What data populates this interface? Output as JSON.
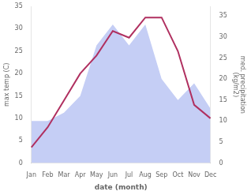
{
  "chart_data": {
    "type": "line",
    "categories": [
      "Jan",
      "Feb",
      "Mar",
      "Apr",
      "May",
      "Jun",
      "Jul",
      "Aug",
      "Sep",
      "Oct",
      "Nov",
      "Dec"
    ],
    "series": [
      {
        "type": "line",
        "color": "#b03060",
        "values": [
          3.5,
          8,
          14,
          20,
          24,
          29.5,
          28,
          32.5,
          32.5,
          25,
          13,
          10
        ]
      },
      {
        "type": "area",
        "color": "#c5cef5",
        "axis": "y2",
        "values": [
          10,
          10,
          12,
          16,
          28,
          33,
          28,
          33,
          20,
          15,
          19,
          13
        ]
      }
    ],
    "xlabel": "date (month)",
    "ylabel": "max temp (C)",
    "y2label": "med. precipitation\n(kg/m2)",
    "ylim": [
      0,
      35
    ],
    "yticks": [
      0,
      5,
      10,
      15,
      20,
      25,
      30,
      35
    ],
    "y2lim": [
      0,
      37.3
    ],
    "y2ticks": [
      0,
      5,
      10,
      15,
      20,
      25,
      30,
      35
    ],
    "grid": false
  }
}
